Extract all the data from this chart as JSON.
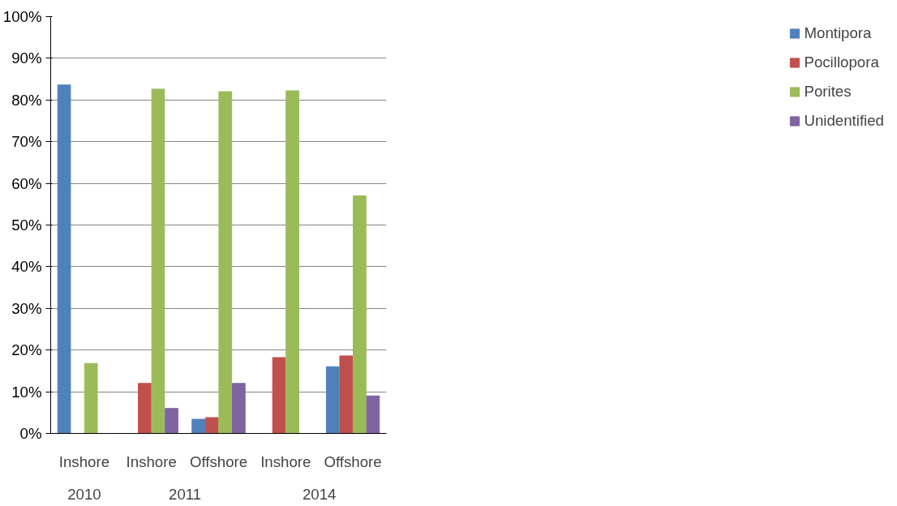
{
  "chart_data": {
    "type": "bar",
    "categories": [
      "Inshore",
      "Inshore",
      "Offshore",
      "Inshore",
      "Offshore"
    ],
    "annotations": [
      "2010",
      "2011",
      "2014"
    ],
    "series": [
      {
        "name": "Montipora",
        "color": "#4f81bd",
        "values": [
          83.6,
          null,
          3.4,
          null,
          16
        ]
      },
      {
        "name": "Pocillopora",
        "color": "#c0504d",
        "values": [
          null,
          12,
          3.8,
          18.2,
          18.6
        ]
      },
      {
        "name": "Porites",
        "color": "#9bbb59",
        "values": [
          16.8,
          82.6,
          82,
          82.2,
          57
        ]
      },
      {
        "name": "Unidentified",
        "color": "#8064a2",
        "values": [
          null,
          6,
          12,
          null,
          9
        ]
      }
    ],
    "ylim": [
      0,
      100
    ],
    "yticks": [
      {
        "value": 0,
        "label": "0%"
      },
      {
        "value": 10,
        "label": "10%"
      },
      {
        "value": 20,
        "label": "20%"
      },
      {
        "value": 30,
        "label": "30%"
      },
      {
        "value": 40,
        "label": "40%"
      },
      {
        "value": 50,
        "label": "50%"
      },
      {
        "value": 60,
        "label": "60%"
      },
      {
        "value": 70,
        "label": "70%"
      },
      {
        "value": 80,
        "label": "80%"
      },
      {
        "value": 90,
        "label": "90%"
      },
      {
        "value": 100,
        "label": "100%"
      }
    ],
    "grid": "y",
    "legend": "right"
  }
}
